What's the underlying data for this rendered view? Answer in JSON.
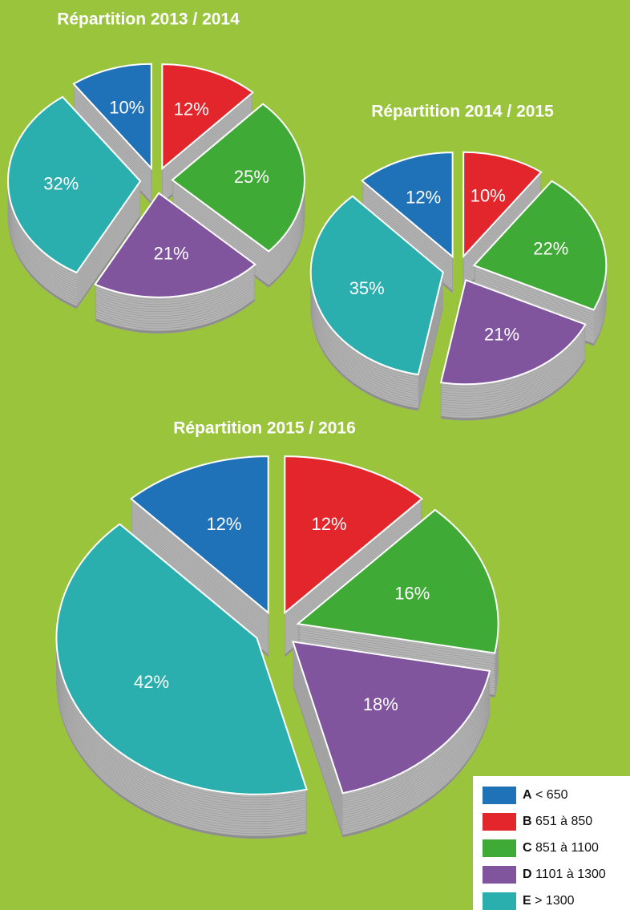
{
  "chart_data": [
    {
      "type": "pie",
      "title": "Répartition 2013 / 2014",
      "values": [
        10,
        12,
        25,
        21,
        32
      ],
      "value_labels": [
        "10%",
        "12%",
        "25%",
        "21%",
        "32%"
      ]
    },
    {
      "type": "pie",
      "title": "Répartition 2014 / 2015",
      "values": [
        12,
        10,
        22,
        21,
        35
      ],
      "value_labels": [
        "12%",
        "10%",
        "22%",
        "21%",
        "35%"
      ]
    },
    {
      "type": "pie",
      "title": "Répartition 2015 / 2016",
      "values": [
        12,
        12,
        16,
        18,
        42
      ],
      "value_labels": [
        "12%",
        "12%",
        "16%",
        "18%",
        "42%"
      ]
    }
  ],
  "legend": [
    {
      "key": "A",
      "label": "< 650",
      "color": "#1f72b8"
    },
    {
      "key": "B",
      "label": "651 à 850",
      "color": "#e3262b"
    },
    {
      "key": "C",
      "label": "851 à 1100",
      "color": "#3faa35"
    },
    {
      "key": "D",
      "label": "1101 à 1300",
      "color": "#80559e"
    },
    {
      "key": "E",
      "label": "> 1300",
      "color": "#2aaeae"
    }
  ]
}
